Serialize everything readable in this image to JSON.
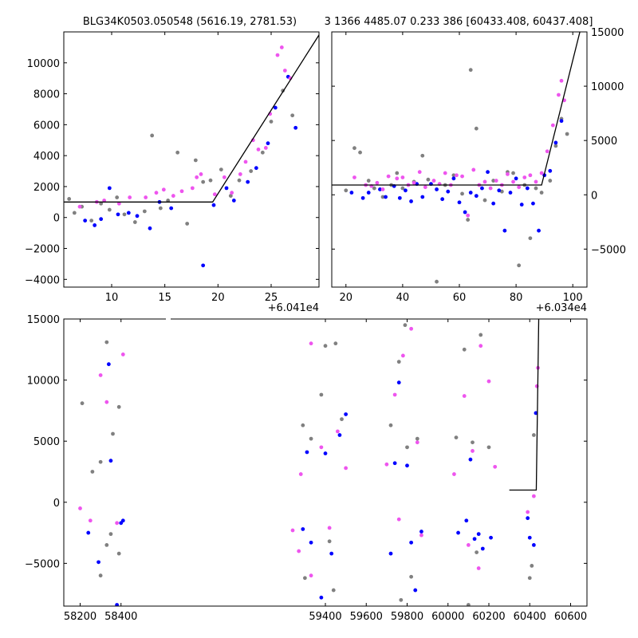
{
  "titles": {
    "left": "BLG34K0503.050548 (5616.19, 2781.53)",
    "right": "3 1366 4485.07 0.233 386 [60433.408, 60437.408]"
  },
  "chart_data": [
    {
      "type": "scatter",
      "panel": "top-left",
      "offset_label": "+6.041e4",
      "xlim": [
        5.5,
        29.5
      ],
      "ylim": [
        -4500,
        12000
      ],
      "xticks": [
        10,
        15,
        20,
        25
      ],
      "yticks": [
        -4000,
        -2000,
        0,
        2000,
        4000,
        6000,
        8000,
        10000
      ],
      "ytick_side": "left",
      "model_line": {
        "x": [
          5.5,
          19.5,
          29.5
        ],
        "y": [
          1000,
          1000,
          11800
        ]
      },
      "series": [
        {
          "color": "#808080",
          "x": [
            6.0,
            6.5,
            7.2,
            8.1,
            9.0,
            9.8,
            10.5,
            11.2,
            12.2,
            13.1,
            13.8,
            14.6,
            15.3,
            16.2,
            17.1,
            17.9,
            18.6,
            19.3,
            20.3,
            21.2,
            22.0,
            23.1,
            24.2,
            25.0,
            26.1,
            27.0
          ],
          "y": [
            1200,
            300,
            700,
            -200,
            900,
            500,
            1300,
            200,
            -300,
            400,
            5300,
            600,
            1100,
            4200,
            -400,
            3700,
            2300,
            2400,
            3100,
            1400,
            2400,
            3000,
            4200,
            6200,
            8200,
            6600
          ]
        },
        {
          "color": "#0000ff",
          "x": [
            7.5,
            8.4,
            9.0,
            9.8,
            10.6,
            11.6,
            12.4,
            13.6,
            14.5,
            15.6,
            18.6,
            19.6,
            20.8,
            21.5,
            22.8,
            23.6,
            24.7,
            25.4,
            26.6,
            27.3
          ],
          "y": [
            -200,
            -500,
            -100,
            1900,
            200,
            300,
            100,
            -700,
            1000,
            600,
            -3100,
            800,
            1900,
            1100,
            2300,
            3200,
            4800,
            7100,
            9100,
            5800
          ]
        },
        {
          "color": "#ee55ee",
          "x": [
            7.0,
            8.6,
            9.3,
            10.7,
            11.7,
            13.2,
            14.2,
            14.9,
            15.8,
            16.6,
            17.6,
            18.0,
            18.4,
            19.7,
            20.6,
            21.3,
            22.1,
            22.6,
            23.3,
            23.8,
            24.5,
            24.9,
            25.6,
            26.0,
            26.3,
            26.8
          ],
          "y": [
            700,
            1000,
            1100,
            900,
            1300,
            1300,
            1600,
            1800,
            1400,
            1700,
            1900,
            2600,
            2800,
            1500,
            2600,
            1600,
            2800,
            3600,
            5000,
            4400,
            4500,
            6700,
            10500,
            11000,
            9500,
            9000
          ]
        }
      ]
    },
    {
      "type": "scatter",
      "panel": "top-right",
      "offset_label": "+6.034e4",
      "xlim": [
        15,
        105
      ],
      "ylim": [
        -8500,
        15000
      ],
      "xticks": [
        20,
        40,
        60,
        80,
        100
      ],
      "yticks": [
        -5000,
        0,
        5000,
        10000,
        15000
      ],
      "ytick_side": "right",
      "model_line": {
        "x": [
          15,
          89,
          102.5
        ],
        "y": [
          900,
          900,
          15000
        ]
      },
      "series": [
        {
          "color": "#808080",
          "x": [
            20,
            23,
            25,
            28,
            30,
            33,
            36,
            38,
            40,
            44,
            47,
            49,
            52,
            55,
            58,
            61,
            63,
            64,
            66,
            69,
            72,
            75,
            77,
            79,
            81,
            83,
            85,
            87,
            89,
            92,
            94,
            96,
            98
          ],
          "y": [
            400,
            4300,
            3900,
            1300,
            600,
            -200,
            900,
            2000,
            600,
            1200,
            3600,
            1400,
            -8000,
            900,
            1800,
            100,
            -2300,
            11500,
            6100,
            -500,
            1300,
            300,
            2100,
            2000,
            -6500,
            900,
            -4000,
            600,
            200,
            1300,
            4500,
            7000,
            5600
          ]
        },
        {
          "color": "#0000ff",
          "x": [
            22,
            26,
            28,
            32,
            34,
            37,
            39,
            41,
            43,
            45,
            47,
            50,
            52,
            54,
            56,
            58,
            60,
            62,
            64,
            66,
            68,
            70,
            72,
            74,
            76,
            78,
            80,
            82,
            84,
            86,
            88,
            90,
            92,
            94,
            96
          ],
          "y": [
            200,
            -300,
            200,
            500,
            -200,
            800,
            -300,
            400,
            -600,
            1000,
            -200,
            1000,
            500,
            -400,
            300,
            1500,
            -700,
            -1600,
            200,
            -100,
            600,
            2100,
            -800,
            400,
            -3300,
            200,
            1500,
            -900,
            600,
            -800,
            -3300,
            1800,
            2200,
            4800,
            6800
          ]
        },
        {
          "color": "#ee55ee",
          "x": [
            23,
            27,
            29,
            31,
            33,
            35,
            38,
            40,
            42,
            44,
            46,
            48,
            51,
            53,
            55,
            57,
            59,
            61,
            63,
            65,
            67,
            69,
            71,
            73,
            75,
            77,
            79,
            81,
            83,
            85,
            87,
            89,
            91,
            93,
            95,
            96,
            97
          ],
          "y": [
            1600,
            900,
            800,
            1100,
            500,
            1700,
            1500,
            1600,
            900,
            1100,
            2100,
            700,
            1300,
            1000,
            2000,
            900,
            1800,
            1700,
            -1900,
            2300,
            900,
            1200,
            600,
            1300,
            900,
            1900,
            1200,
            700,
            1600,
            1800,
            1200,
            2000,
            4000,
            6400,
            9200,
            10500,
            8700
          ]
        }
      ]
    },
    {
      "type": "scatter",
      "panel": "bottom",
      "xlim": [
        58120,
        60680
      ],
      "ylim": [
        -8500,
        15000
      ],
      "xticks": [
        58200,
        58400,
        59400,
        59600,
        59800,
        60000,
        60200,
        60400,
        60600
      ],
      "yticks": [
        -5000,
        0,
        5000,
        10000,
        15000
      ],
      "ytick_side": "left",
      "model_line": {
        "x": [
          60300,
          60432,
          60437,
          60444
        ],
        "y": [
          1000,
          1000,
          6800,
          15000
        ]
      },
      "seasons": [
        [
          58185,
          58430
        ],
        [
          59245,
          59515
        ],
        [
          59680,
          59870
        ],
        [
          60010,
          60235
        ],
        [
          60380,
          60443
        ]
      ],
      "season_labels_note": "dense clusters of points per season",
      "series": [
        {
          "color": "#808080",
          "x": [
            58210,
            58260,
            58300,
            58330,
            58360,
            58390,
            58300,
            58330,
            58350,
            58390,
            59290,
            59330,
            59380,
            59400,
            59420,
            59450,
            59480,
            59300,
            59440,
            59720,
            59760,
            59790,
            59820,
            59850,
            59770,
            59800,
            60040,
            60080,
            60120,
            60160,
            60200,
            60100,
            60140,
            60400,
            60410,
            60420
          ],
          "y": [
            8100,
            2500,
            3300,
            13100,
            5600,
            7800,
            -6000,
            -3500,
            -2600,
            -4200,
            6300,
            5200,
            8800,
            12800,
            -3200,
            13000,
            6800,
            -6200,
            -7200,
            6300,
            11500,
            14500,
            -6100,
            5200,
            -8000,
            4500,
            5300,
            12500,
            4900,
            13700,
            4500,
            -8400,
            -4100,
            -6200,
            -5200,
            5500
          ]
        },
        {
          "color": "#0000ff",
          "x": [
            58240,
            58290,
            58340,
            58380,
            58400,
            58410,
            58350,
            59290,
            59330,
            59380,
            59430,
            59470,
            59500,
            59310,
            59400,
            59720,
            59760,
            59800,
            59840,
            59870,
            59740,
            59820,
            60050,
            60090,
            60130,
            60170,
            60210,
            60110,
            60150,
            60390,
            60400,
            60420,
            60430
          ],
          "y": [
            -2500,
            -4900,
            11300,
            -8400,
            -1700,
            -1500,
            3400,
            -2200,
            -3300,
            -7800,
            -4200,
            5500,
            7200,
            4100,
            4000,
            -4200,
            9800,
            3000,
            -7200,
            -2400,
            3200,
            -3300,
            -2500,
            -1500,
            -3000,
            -3800,
            -2900,
            3500,
            -2600,
            -1300,
            -2900,
            -3500,
            7300
          ]
        },
        {
          "color": "#ee55ee",
          "x": [
            58200,
            58250,
            58300,
            58330,
            58380,
            58410,
            59240,
            59280,
            59330,
            59380,
            59420,
            59460,
            59500,
            59270,
            59330,
            59700,
            59740,
            59780,
            59820,
            59850,
            59870,
            59760,
            60030,
            60080,
            60120,
            60160,
            60200,
            60230,
            60100,
            60150,
            60390,
            60420,
            60435,
            60440
          ],
          "y": [
            -500,
            -1500,
            10400,
            8200,
            -1700,
            12100,
            -2300,
            2300,
            13000,
            4500,
            -2100,
            5800,
            2800,
            -4000,
            -6000,
            3100,
            8800,
            12000,
            14200,
            4900,
            -2700,
            -1400,
            2300,
            8700,
            4200,
            12800,
            9900,
            2900,
            -3500,
            -5400,
            -800,
            500,
            9500,
            11000
          ]
        }
      ]
    }
  ]
}
